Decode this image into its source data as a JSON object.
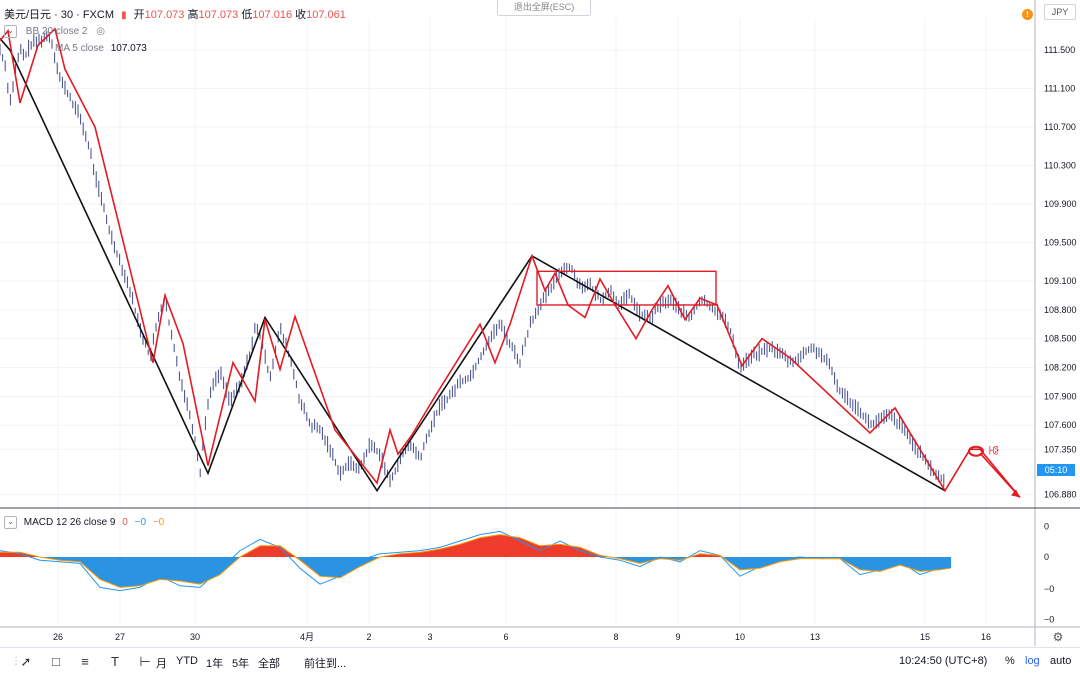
{
  "header": {
    "symbol_text": "美元/日元 · 30 · FXCM",
    "ohlc": [
      {
        "label": "开",
        "value": "107.073"
      },
      {
        "label": "高",
        "value": "107.073"
      },
      {
        "label": "低",
        "value": "107.016"
      },
      {
        "label": "收",
        "value": "107.061"
      }
    ],
    "bb_label": "BB 20 close 2",
    "ma_label": "MA 5 close",
    "ma_value": "107.073",
    "exit_fullscreen": "退出全屏(ESC)",
    "currency": "JPY",
    "orange_badge": "!"
  },
  "macd": {
    "label": "MACD 12 26 close 9",
    "v1": "0",
    "v2": "−0",
    "v3": "−0",
    "axis_ticks": [
      "0",
      "0",
      "−0",
      "−0"
    ]
  },
  "price_tag": "05:10",
  "annotation_text": "空",
  "toolbar": {
    "items": [
      "月",
      "YTD",
      "1年",
      "5年",
      "全部",
      "前往到..."
    ],
    "time": "10:24:50 (UTC+8)",
    "percent": "%",
    "log": "log",
    "auto": "auto"
  },
  "colors": {
    "red": "#e31b23",
    "black": "#111111",
    "candle": "#3f4a8c",
    "macd_pos": "#ef3b2c",
    "macd_neg": "#2a93e2",
    "macd_line": "#2196f3",
    "signal_line": "#ff9800"
  },
  "chart_data": {
    "type": "line",
    "y_axis": {
      "ticks": [
        "111.500",
        "111.100",
        "110.700",
        "110.300",
        "109.900",
        "109.500",
        "109.100",
        "108.800",
        "108.500",
        "108.200",
        "107.900",
        "107.600",
        "107.350",
        "106.880"
      ],
      "range": [
        106.75,
        111.75
      ]
    },
    "x_axis": {
      "tick_labels": [
        "26",
        "27",
        "30",
        "4月",
        "2",
        "3",
        "6",
        "8",
        "9",
        "10",
        "13",
        "15",
        "16"
      ]
    },
    "series": [
      {
        "role": "price_path",
        "x": [
          0,
          5,
          10,
          15,
          20,
          25,
          30,
          40,
          50,
          60,
          70,
          80,
          90,
          95,
          100,
          110,
          120,
          130,
          140,
          150,
          155,
          160,
          165,
          170,
          180,
          190,
          195,
          200,
          205,
          210,
          220,
          230,
          240,
          250,
          255,
          260,
          265,
          270,
          280,
          290,
          300,
          310,
          320,
          330,
          340,
          350,
          360,
          370,
          380,
          390,
          400,
          410,
          420,
          430,
          440,
          450,
          460,
          470,
          480,
          490,
          500,
          510,
          520,
          530,
          540,
          550,
          560,
          570,
          580,
          590,
          600,
          610,
          620,
          630,
          640,
          650,
          660,
          670,
          680,
          690,
          700,
          710,
          720,
          730,
          740,
          750,
          760,
          770,
          780,
          790,
          800,
          810,
          820,
          830,
          840,
          850,
          860,
          870,
          880,
          890,
          900,
          910,
          920,
          930,
          940,
          945
        ],
        "y": [
          111.5,
          111.35,
          110.95,
          111.25,
          111.5,
          111.42,
          111.55,
          111.6,
          111.65,
          111.2,
          111.0,
          110.8,
          110.45,
          110.2,
          110.0,
          109.6,
          109.3,
          109.0,
          108.6,
          108.3,
          108.55,
          108.8,
          108.9,
          108.6,
          108.1,
          107.7,
          107.45,
          107.1,
          107.6,
          107.95,
          108.15,
          107.85,
          108.0,
          108.35,
          108.6,
          108.55,
          108.3,
          108.1,
          108.6,
          108.3,
          107.85,
          107.6,
          107.55,
          107.35,
          107.1,
          107.2,
          107.15,
          107.4,
          107.3,
          107.0,
          107.25,
          107.4,
          107.25,
          107.55,
          107.8,
          107.9,
          108.05,
          108.1,
          108.3,
          108.5,
          108.65,
          108.45,
          108.25,
          108.65,
          108.85,
          109.0,
          109.2,
          109.25,
          109.05,
          109.05,
          108.9,
          109.0,
          108.85,
          108.95,
          108.75,
          108.7,
          108.85,
          108.9,
          108.8,
          108.7,
          108.9,
          108.85,
          108.75,
          108.6,
          108.2,
          108.3,
          108.35,
          108.4,
          108.35,
          108.25,
          108.3,
          108.4,
          108.35,
          108.2,
          107.95,
          107.85,
          107.75,
          107.6,
          107.65,
          107.7,
          107.6,
          107.45,
          107.3,
          107.15,
          107.05,
          107.0
        ],
        "min_offset": 0.06,
        "max_offset": 0.07
      },
      {
        "role": "black_zigzag",
        "x": [
          0,
          10,
          208,
          265,
          377,
          532,
          945
        ],
        "y": [
          111.62,
          111.5,
          107.1,
          108.72,
          106.92,
          109.36,
          106.92
        ]
      },
      {
        "role": "red_zigzag",
        "x": [
          0,
          8,
          20,
          38,
          55,
          65,
          95,
          153,
          165,
          183,
          208,
          233,
          255,
          265,
          280,
          295,
          335,
          377,
          390,
          398,
          412,
          435,
          480,
          495,
          510,
          532,
          545,
          555,
          568,
          585,
          600,
          615,
          636,
          652,
          668,
          685,
          700,
          717,
          742,
          762,
          790,
          870,
          895,
          945,
          970,
          980,
          1020
        ],
        "y": [
          111.6,
          111.7,
          110.95,
          111.55,
          111.72,
          111.3,
          110.7,
          108.25,
          108.95,
          108.45,
          107.18,
          108.25,
          107.85,
          108.7,
          108.18,
          108.73,
          107.55,
          107.0,
          107.55,
          107.3,
          107.5,
          107.9,
          108.65,
          108.25,
          108.65,
          109.36,
          109.0,
          109.18,
          108.85,
          108.72,
          109.12,
          108.85,
          108.5,
          108.8,
          109.05,
          108.7,
          108.92,
          108.85,
          108.22,
          108.5,
          108.3,
          107.52,
          107.78,
          106.92,
          107.35,
          107.35,
          106.85
        ]
      },
      {
        "role": "macd_line",
        "x": [
          0,
          20,
          40,
          60,
          80,
          100,
          120,
          140,
          160,
          180,
          200,
          220,
          240,
          260,
          280,
          300,
          320,
          340,
          360,
          380,
          400,
          420,
          440,
          460,
          480,
          500,
          520,
          540,
          560,
          580,
          600,
          620,
          640,
          660,
          680,
          700,
          720,
          740,
          760,
          780,
          800,
          820,
          840,
          860,
          880,
          900,
          920,
          940,
          950
        ],
        "y": [
          0.2,
          0.1,
          -0.1,
          -0.15,
          -0.2,
          -0.95,
          -1.05,
          -0.95,
          -0.6,
          -0.9,
          -0.95,
          -0.4,
          0.2,
          0.55,
          0.3,
          -0.35,
          -0.85,
          -0.6,
          -0.1,
          0.1,
          0.15,
          0.2,
          0.3,
          0.5,
          0.7,
          0.8,
          0.5,
          0.2,
          0.5,
          0.2,
          0.0,
          -0.1,
          -0.3,
          0.0,
          -0.15,
          0.2,
          0.05,
          -0.6,
          -0.3,
          -0.05,
          0.0,
          -0.05,
          -0.05,
          -0.55,
          -0.4,
          -0.15,
          -0.55,
          -0.35,
          -0.35
        ]
      },
      {
        "role": "signal_line",
        "x": [
          0,
          20,
          40,
          60,
          80,
          100,
          120,
          140,
          160,
          180,
          200,
          220,
          240,
          260,
          280,
          300,
          320,
          340,
          360,
          380,
          400,
          420,
          440,
          460,
          480,
          500,
          520,
          540,
          560,
          580,
          600,
          620,
          640,
          660,
          680,
          700,
          720,
          740,
          760,
          780,
          800,
          820,
          840,
          860,
          880,
          900,
          920,
          940,
          950
        ],
        "y": [
          0.15,
          0.15,
          0.0,
          -0.1,
          -0.15,
          -0.7,
          -0.95,
          -0.9,
          -0.7,
          -0.75,
          -0.85,
          -0.55,
          0.0,
          0.35,
          0.35,
          -0.1,
          -0.6,
          -0.65,
          -0.3,
          0.0,
          0.1,
          0.15,
          0.25,
          0.4,
          0.6,
          0.7,
          0.6,
          0.35,
          0.4,
          0.3,
          0.05,
          -0.05,
          -0.2,
          -0.05,
          -0.1,
          0.1,
          0.05,
          -0.4,
          -0.35,
          -0.15,
          -0.05,
          -0.05,
          -0.05,
          -0.4,
          -0.45,
          -0.25,
          -0.45,
          -0.4,
          -0.35
        ]
      },
      {
        "role": "macd_histogram",
        "x": [
          0,
          20,
          40,
          60,
          80,
          100,
          120,
          140,
          160,
          180,
          200,
          220,
          240,
          260,
          280,
          300,
          320,
          340,
          360,
          380,
          400,
          420,
          440,
          460,
          480,
          500,
          520,
          540,
          560,
          580,
          600,
          620,
          640,
          660,
          680,
          700,
          720,
          740,
          760,
          780,
          800,
          820,
          840,
          860,
          880,
          900,
          920,
          940,
          950
        ],
        "y": [
          0.05,
          -0.05,
          -0.1,
          -0.05,
          -0.05,
          -0.25,
          -0.1,
          -0.05,
          0.1,
          -0.15,
          -0.1,
          0.15,
          0.2,
          0.2,
          -0.05,
          -0.25,
          -0.25,
          0.05,
          0.2,
          0.1,
          0.05,
          0.05,
          0.05,
          0.1,
          0.1,
          0.1,
          -0.1,
          -0.15,
          0.1,
          -0.1,
          -0.05,
          -0.05,
          -0.1,
          0.05,
          -0.05,
          0.1,
          0.0,
          -0.2,
          0.05,
          0.1,
          0.05,
          0.0,
          0.0,
          -0.15,
          0.05,
          0.1,
          -0.1,
          0.05,
          0.0
        ]
      }
    ],
    "annotations": {
      "consolidation_box": {
        "x0": 537,
        "x1": 716,
        "y_top": 109.2,
        "y_bottom": 108.85
      },
      "short_arrow": {
        "circle": {
          "x": 976,
          "y": 107.33
        },
        "arrow_to": {
          "x": 1020,
          "y": 106.85
        }
      }
    }
  }
}
